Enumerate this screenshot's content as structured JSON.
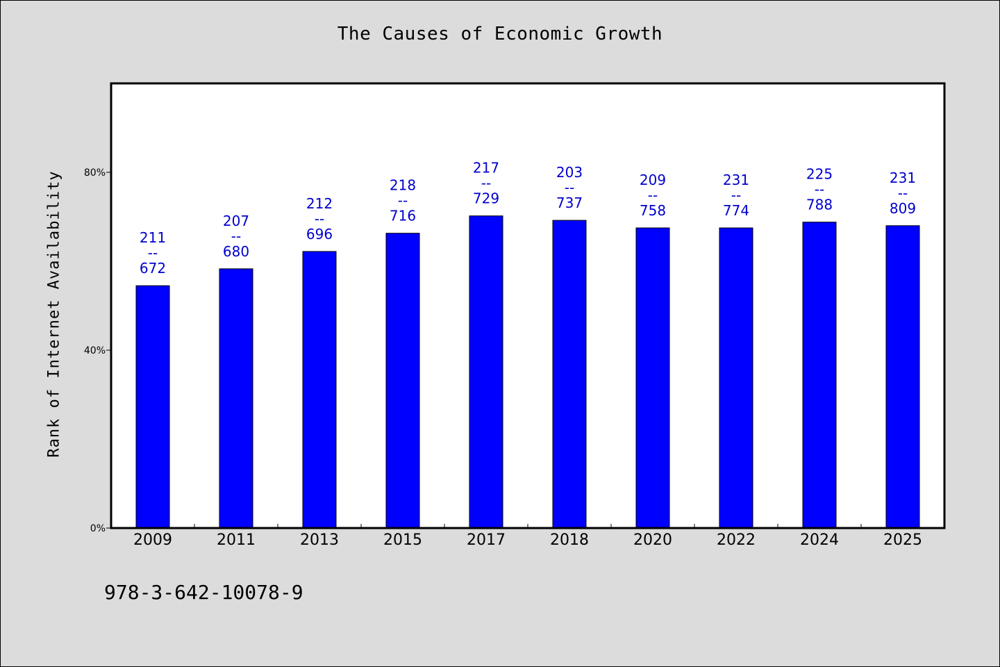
{
  "chart_data": {
    "type": "bar",
    "title": "The Causes of Economic Growth",
    "xlabel": "",
    "ylabel": "Rank of Internet Availability",
    "categories": [
      "2009",
      "2011",
      "2013",
      "2015",
      "2017",
      "2018",
      "2020",
      "2022",
      "2024",
      "2025"
    ],
    "values": [
      54.5,
      58.3,
      62.2,
      66.3,
      70.2,
      69.2,
      67.5,
      67.5,
      68.8,
      68.0
    ],
    "bar_labels": [
      {
        "top": "211",
        "sep": "--",
        "bottom": "672"
      },
      {
        "top": "207",
        "sep": "--",
        "bottom": "680"
      },
      {
        "top": "212",
        "sep": "--",
        "bottom": "696"
      },
      {
        "top": "218",
        "sep": "--",
        "bottom": "716"
      },
      {
        "top": "217",
        "sep": "--",
        "bottom": "729"
      },
      {
        "top": "203",
        "sep": "--",
        "bottom": "737"
      },
      {
        "top": "209",
        "sep": "--",
        "bottom": "758"
      },
      {
        "top": "231",
        "sep": "--",
        "bottom": "774"
      },
      {
        "top": "225",
        "sep": "--",
        "bottom": "788"
      },
      {
        "top": "231",
        "sep": "--",
        "bottom": "809"
      }
    ],
    "y_ticks": [
      0,
      40,
      80
    ],
    "y_tick_labels": [
      "0%",
      "40%",
      "80%"
    ],
    "ylim": [
      0,
      100
    ],
    "grid": false,
    "bar_color": "#0000ff",
    "label_color": "#0000cc"
  },
  "footer": {
    "isbn": "978-3-642-10078-9"
  }
}
